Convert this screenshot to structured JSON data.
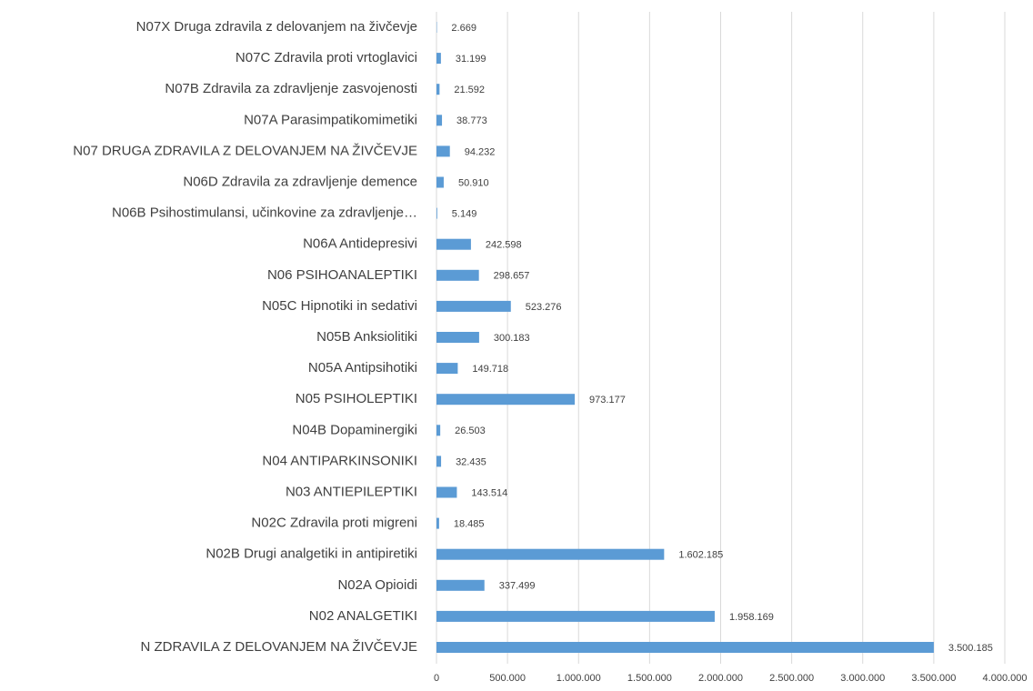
{
  "chart_data": {
    "type": "barh",
    "categories": [
      "N07X Druga zdravila z delovanjem na živčevje",
      "N07C Zdravila proti vrtoglavici",
      "N07B Zdravila za zdravljenje zasvojenosti",
      "N07A Parasimpatikomimetiki",
      "N07 DRUGA ZDRAVILA Z DELOVANJEM NA ŽIVČEVJE",
      "N06D Zdravila za zdravljenje demence",
      "N06B Psihostimulansi, učinkovine za zdravljenje…",
      "N06A Antidepresivi",
      "N06 PSIHOANALEPTIKI",
      "N05C Hipnotiki in sedativi",
      "N05B Anksiolitiki",
      "N05A Antipsihotiki",
      "N05 PSIHOLEPTIKI",
      "N04B Dopaminergiki",
      "N04 ANTIPARKINSONIKI",
      "N03 ANTIEPILEPTIKI",
      "N02C Zdravila proti migreni",
      "N02B Drugi analgetiki in antipiretiki",
      "N02A Opioidi",
      "N02 ANALGETIKI",
      "N ZDRAVILA Z DELOVANJEM NA ŽIVČEVJE"
    ],
    "values": [
      2669,
      31199,
      21592,
      38773,
      94232,
      50910,
      5149,
      242598,
      298657,
      523276,
      300183,
      149718,
      973177,
      26503,
      32435,
      143514,
      18485,
      1602185,
      337499,
      1958169,
      3500185
    ],
    "value_labels": [
      "2.669",
      "31.199",
      "21.592",
      "38.773",
      "94.232",
      "50.910",
      "5.149",
      "242.598",
      "298.657",
      "523.276",
      "300.183",
      "149.718",
      "973.177",
      "26.503",
      "32.435",
      "143.514",
      "18.485",
      "1.602.185",
      "337.499",
      "1.958.169",
      "3.500.185"
    ],
    "color": "#5b9bd5",
    "xlim": [
      0,
      4000000
    ],
    "xticks": [
      0,
      {
        "value": 500000,
        "label": "500.000"
      },
      {
        "value": 1000000,
        "label": "1.000.000"
      },
      {
        "value": 1500000,
        "label": "1.500.000"
      },
      {
        "value": 2000000,
        "label": "2.000.000"
      },
      {
        "value": 2500000,
        "label": "2.500.000"
      },
      {
        "value": 3000000,
        "label": "3.000.000"
      },
      {
        "value": 3500000,
        "label": "3.500.000"
      },
      {
        "value": 4000000,
        "label": "4.000.000"
      }
    ],
    "grid": true
  }
}
